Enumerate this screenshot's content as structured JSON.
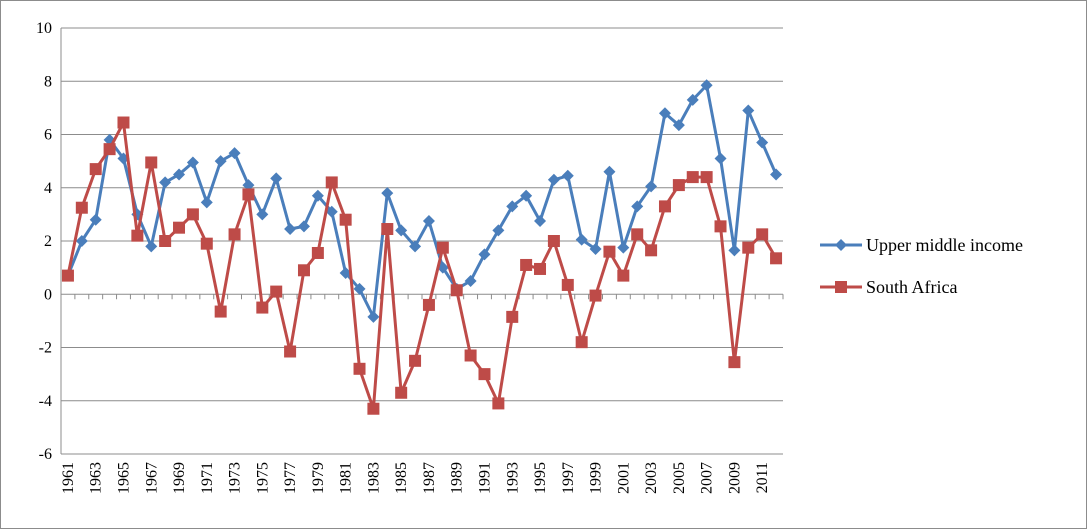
{
  "chart_data": {
    "type": "line",
    "title": "",
    "xlabel": "",
    "ylabel": "",
    "ylim": [
      -6,
      10
    ],
    "yticks": [
      -6,
      -4,
      -2,
      0,
      2,
      4,
      6,
      8,
      10
    ],
    "grid": "horizontal",
    "legend": "right",
    "x": [
      1961,
      1962,
      1963,
      1964,
      1965,
      1966,
      1967,
      1968,
      1969,
      1970,
      1971,
      1972,
      1973,
      1974,
      1975,
      1976,
      1977,
      1978,
      1979,
      1980,
      1981,
      1982,
      1983,
      1984,
      1985,
      1986,
      1987,
      1988,
      1989,
      1990,
      1991,
      1992,
      1993,
      1994,
      1995,
      1996,
      1997,
      1998,
      1999,
      2000,
      2001,
      2002,
      2003,
      2004,
      2005,
      2006,
      2007,
      2008,
      2009,
      2010,
      2011,
      2012
    ],
    "xtick_labels": [
      "1961",
      "1963",
      "1965",
      "1967",
      "1969",
      "1971",
      "1973",
      "1975",
      "1977",
      "1979",
      "1981",
      "1983",
      "1985",
      "1987",
      "1989",
      "1991",
      "1993",
      "1995",
      "1997",
      "1999",
      "2001",
      "2003",
      "2005",
      "2007",
      "2009",
      "2011"
    ],
    "series": [
      {
        "name": "Upper middle income",
        "color": "#4a7ebb",
        "marker": "diamond",
        "values": [
          0.7,
          2.0,
          2.8,
          5.8,
          5.1,
          3.0,
          1.8,
          4.2,
          4.5,
          4.95,
          3.45,
          5.0,
          5.3,
          4.1,
          3.0,
          4.35,
          2.45,
          2.55,
          3.7,
          3.1,
          0.8,
          0.2,
          -0.85,
          3.8,
          2.4,
          1.8,
          2.75,
          1.0,
          0.2,
          0.5,
          1.5,
          2.4,
          3.3,
          3.7,
          2.75,
          4.3,
          4.45,
          2.05,
          1.7,
          4.6,
          1.75,
          3.3,
          4.05,
          6.8,
          6.35,
          7.3,
          7.85,
          5.1,
          1.65,
          6.9,
          5.7,
          4.5
        ]
      },
      {
        "name": "South Africa",
        "color": "#be4b48",
        "marker": "square",
        "values": [
          0.7,
          3.25,
          4.7,
          5.45,
          6.45,
          2.2,
          4.95,
          2.0,
          2.5,
          3.0,
          1.9,
          -0.65,
          2.25,
          3.75,
          -0.5,
          0.1,
          -2.15,
          0.9,
          1.55,
          4.2,
          2.8,
          -2.8,
          -4.3,
          2.45,
          -3.7,
          -2.5,
          -0.4,
          1.75,
          0.15,
          -2.3,
          -3.0,
          -4.1,
          -0.85,
          1.1,
          0.95,
          2.0,
          0.35,
          -1.8,
          -0.05,
          1.6,
          0.7,
          2.25,
          1.65,
          3.3,
          4.1,
          4.4,
          4.4,
          2.55,
          -2.55,
          1.75,
          2.25,
          1.35
        ]
      }
    ]
  }
}
